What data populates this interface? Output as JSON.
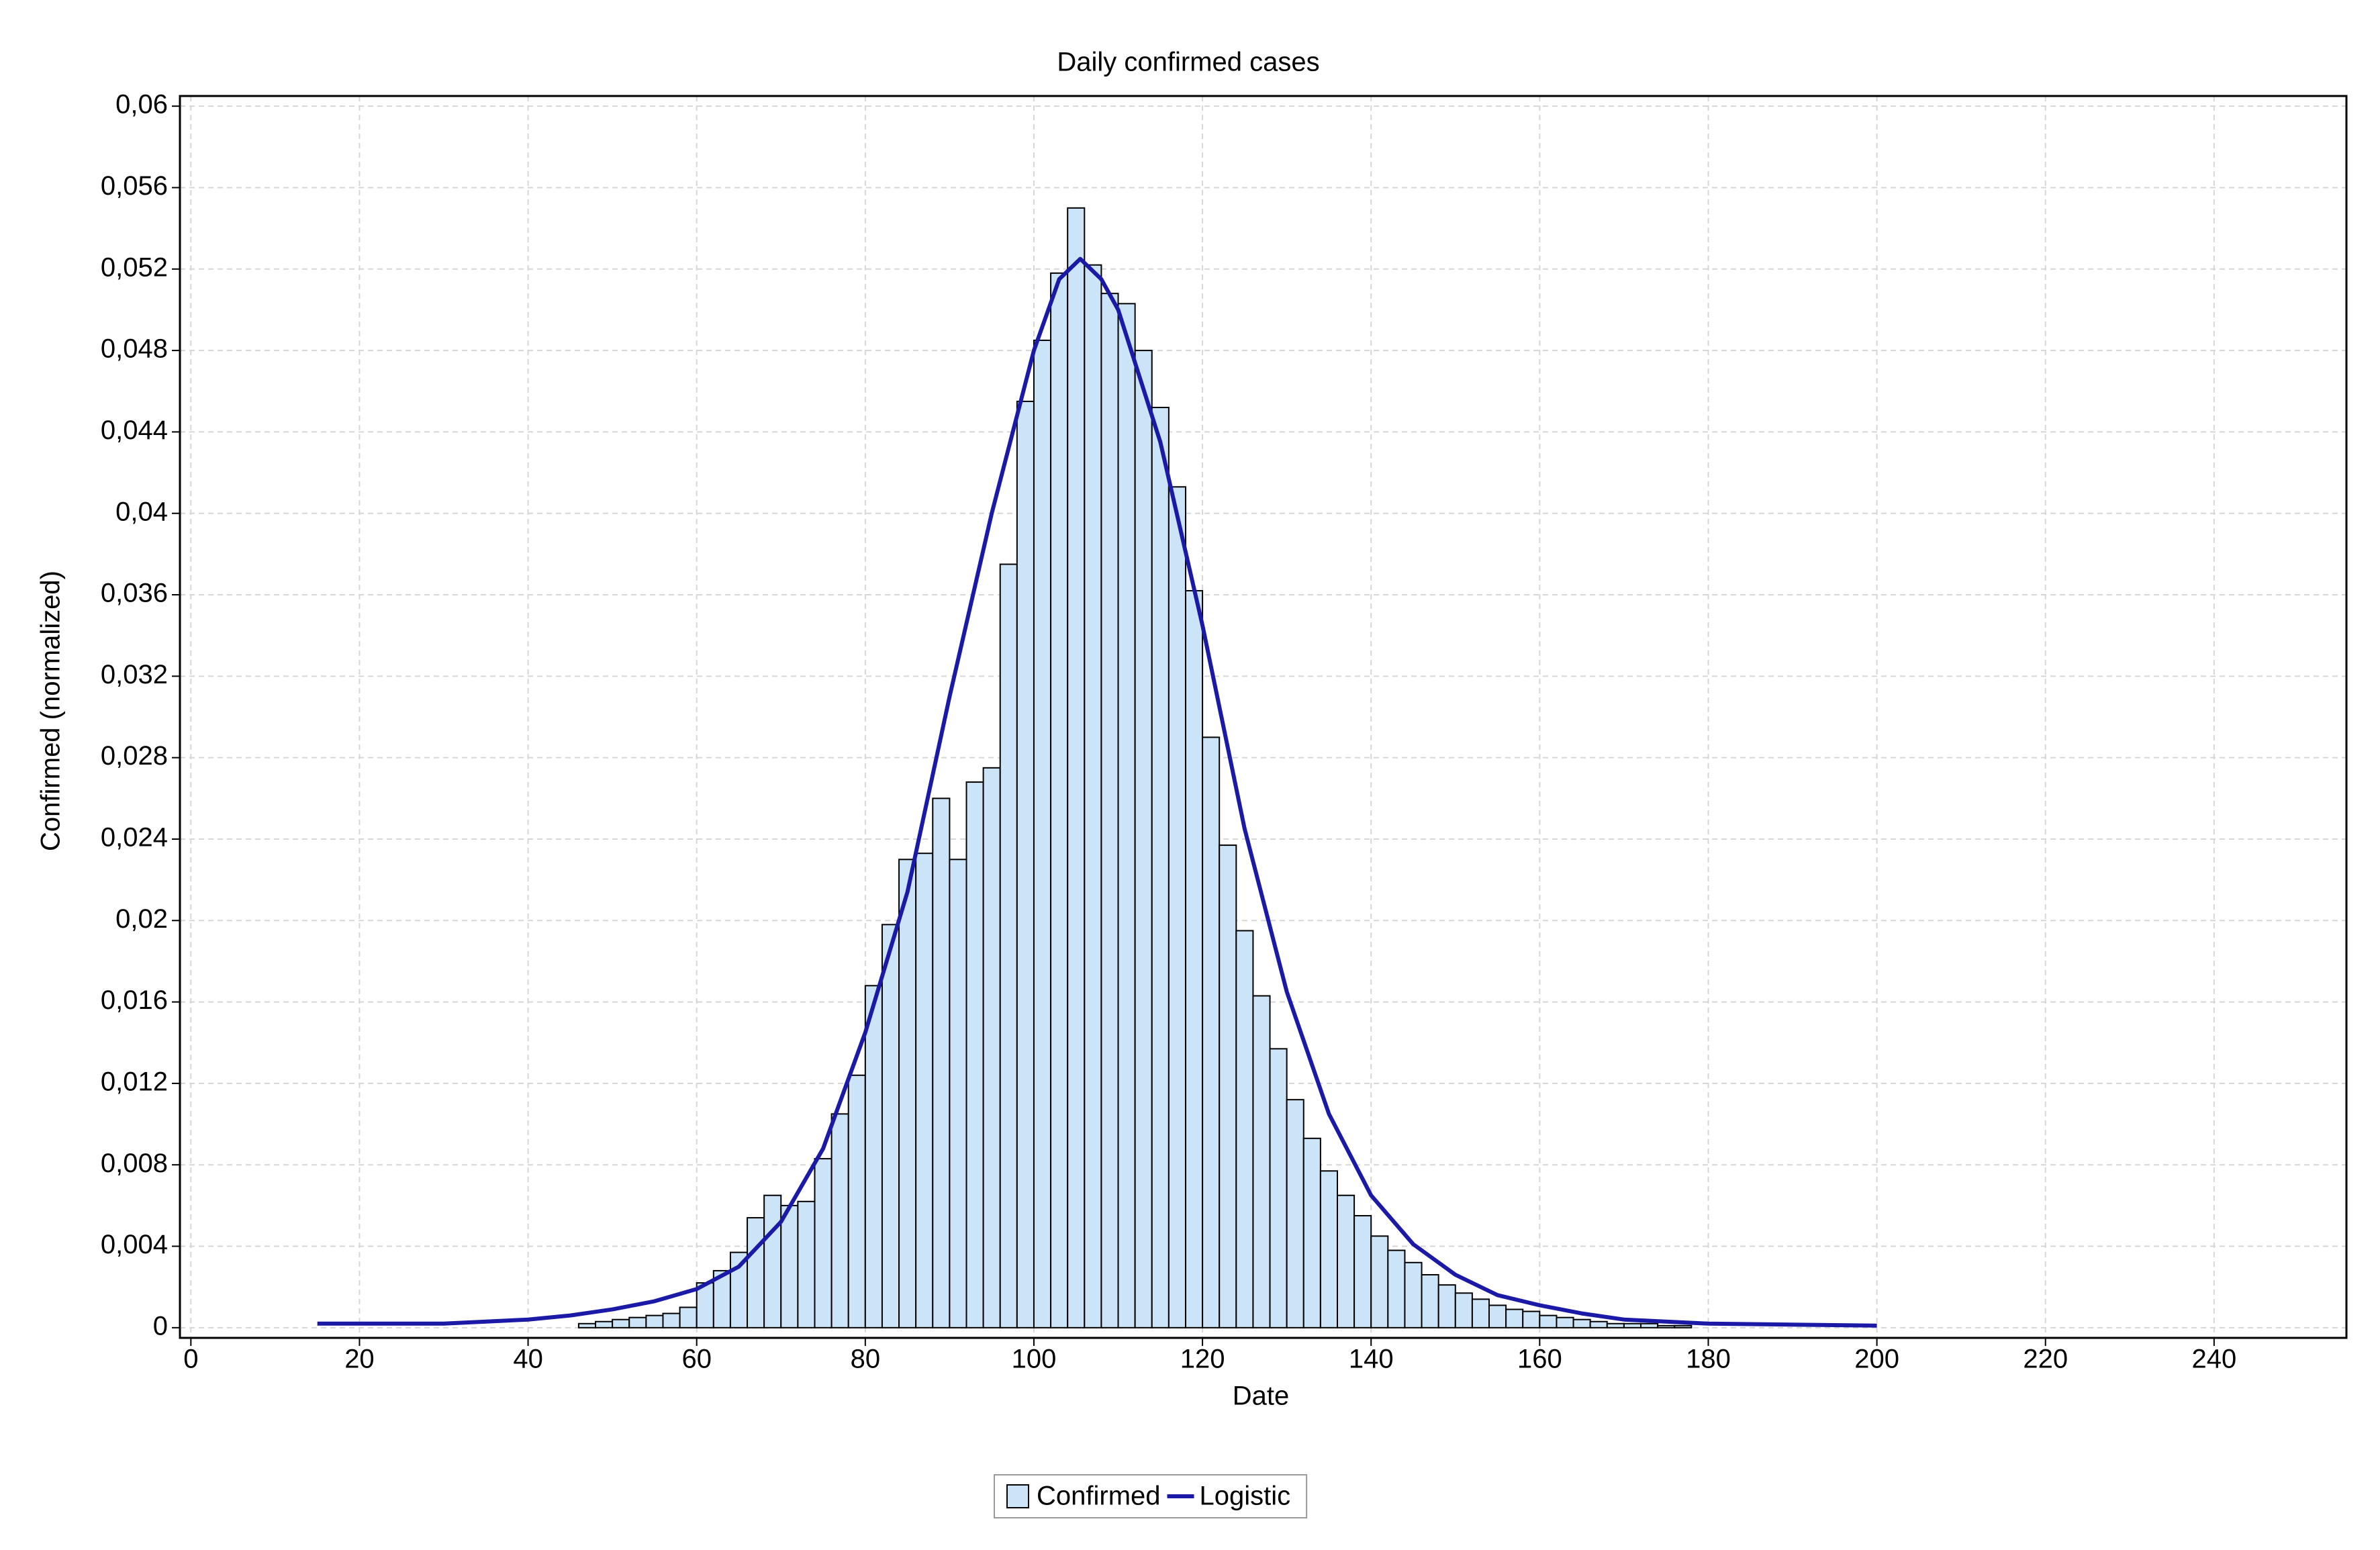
{
  "chart_data": {
    "type": "histogram",
    "title": "Daily confirmed cases",
    "x_label": "Date",
    "y_label": "Confirmed (normalized)",
    "xlim": [
      -1.3,
      255.7
    ],
    "ylim": [
      -0.0005,
      0.0605
    ],
    "xticks": [
      0,
      20,
      40,
      60,
      80,
      100,
      120,
      140,
      160,
      180,
      200,
      220,
      240
    ],
    "yticks": [
      0,
      {
        "value": 0.004,
        "label": "0,004"
      },
      {
        "value": 0.008,
        "label": "0,008"
      },
      {
        "value": 0.012,
        "label": "0,012"
      },
      {
        "value": 0.016,
        "label": "0,016"
      },
      {
        "value": 0.02,
        "label": "0,02"
      },
      {
        "value": 0.024,
        "label": "0,024"
      },
      {
        "value": 0.028,
        "label": "0,028"
      },
      {
        "value": 0.032,
        "label": "0,032"
      },
      {
        "value": 0.036,
        "label": "0,036"
      },
      {
        "value": 0.04,
        "label": "0,04"
      },
      {
        "value": 0.044,
        "label": "0,044"
      },
      {
        "value": 0.048,
        "label": "0,048"
      },
      {
        "value": 0.052,
        "label": "0,052"
      },
      {
        "value": 0.056,
        "label": "0,056"
      },
      {
        "value": 0.06,
        "label": "0,06"
      }
    ],
    "grid": true,
    "legend": "bottom",
    "bins": [
      46,
      48,
      50,
      52,
      54,
      56,
      58,
      60,
      62,
      64,
      66,
      68,
      70,
      72,
      74,
      76,
      78,
      80,
      82,
      84,
      86,
      88,
      90,
      92,
      94,
      96,
      98,
      100,
      102,
      104,
      106,
      108,
      110,
      112,
      114,
      116,
      118,
      120,
      122,
      124,
      126,
      128,
      130,
      132,
      134,
      136,
      138,
      140,
      142,
      144,
      146,
      148,
      150,
      152,
      154,
      156,
      158,
      160,
      162,
      164,
      166,
      168,
      170,
      172,
      174,
      176,
      178
    ],
    "series": [
      {
        "name": "Confirmed",
        "type": "histogram",
        "color": "#cce4f7",
        "values": [
          0.0002,
          0.0003,
          0.0004,
          0.0005,
          0.0006,
          0.0007,
          0.001,
          0.0022,
          0.0028,
          0.0037,
          0.0054,
          0.0065,
          0.006,
          0.0062,
          0.0083,
          0.0105,
          0.0124,
          0.0168,
          0.0198,
          0.023,
          0.0233,
          0.026,
          0.023,
          0.0268,
          0.0275,
          0.0375,
          0.0455,
          0.0485,
          0.0518,
          0.055,
          0.0522,
          0.0508,
          0.0503,
          0.048,
          0.0452,
          0.0413,
          0.0362,
          0.029,
          0.0237,
          0.0195,
          0.0163,
          0.0137,
          0.0112,
          0.0093,
          0.0077,
          0.0065,
          0.0055,
          0.0045,
          0.0038,
          0.0032,
          0.0026,
          0.0021,
          0.0017,
          0.0014,
          0.0011,
          0.0009,
          0.0008,
          0.0006,
          0.0005,
          0.0004,
          0.0003,
          0.0002,
          0.0002,
          0.0002,
          0.0001,
          0.0001
        ]
      },
      {
        "name": "Logistic",
        "type": "line",
        "color": "#1a1aa6",
        "x": [
          15,
          20,
          30,
          35,
          40,
          45,
          50,
          55,
          60,
          65,
          70,
          75,
          80,
          85,
          90,
          95,
          100,
          103,
          105.5,
          108,
          110,
          115,
          120,
          125,
          130,
          135,
          140,
          145,
          150,
          155,
          160,
          165,
          170,
          180,
          200
        ],
        "values": [
          0.0002,
          0.0002,
          0.0002,
          0.0003,
          0.0004,
          0.0006,
          0.0009,
          0.0013,
          0.0019,
          0.003,
          0.0052,
          0.0088,
          0.0145,
          0.0214,
          0.031,
          0.04,
          0.048,
          0.0515,
          0.0525,
          0.0515,
          0.05,
          0.0435,
          0.0345,
          0.0245,
          0.0165,
          0.0105,
          0.0065,
          0.0041,
          0.0026,
          0.0016,
          0.0011,
          0.0007,
          0.0004,
          0.0002,
          0.0001
        ]
      }
    ]
  }
}
